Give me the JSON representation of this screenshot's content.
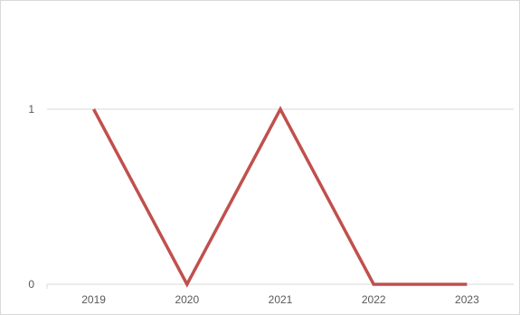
{
  "chart_data": {
    "type": "line",
    "title": "",
    "xlabel": "",
    "ylabel": "",
    "categories": [
      "2019",
      "2020",
      "2021",
      "2022",
      "2023"
    ],
    "series": [
      {
        "values": [
          1,
          0,
          1,
          0,
          0
        ],
        "color": "#c0504d"
      }
    ],
    "ylim": [
      0,
      1
    ],
    "y_ticks": [
      "0",
      "1"
    ],
    "grid": true,
    "legend": "none"
  }
}
